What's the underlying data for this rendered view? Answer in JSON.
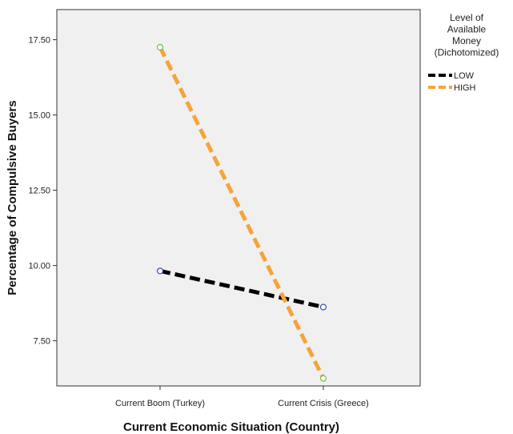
{
  "chart_data": {
    "type": "line",
    "xlabel": "Current Economic Situation (Country)",
    "ylabel": "Percentage of Compulsive Buyers",
    "categories": [
      "Current Boom (Turkey)",
      "Current Crisis (Greece)"
    ],
    "ylim": [
      6.0,
      18.5
    ],
    "yticks": [
      "7.50",
      "10.00",
      "12.50",
      "15.00",
      "17.50"
    ],
    "grid": false,
    "legend": {
      "title_lines": [
        "Level of",
        "Available",
        "Money",
        "(Dichotomized)"
      ],
      "placement": "right"
    },
    "series": [
      {
        "name": "LOW",
        "values": [
          9.82,
          8.62
        ],
        "color": "#000000",
        "marker_color": "#3b4fb8"
      },
      {
        "name": "HIGH",
        "values": [
          17.25,
          6.25
        ],
        "color": "#f5a43b",
        "marker_color": "#6cc04a"
      }
    ]
  }
}
